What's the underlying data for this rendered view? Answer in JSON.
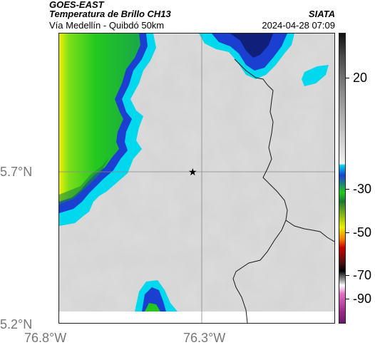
{
  "header": {
    "satellite": "GOES-EAST",
    "product": "Temperatura de Brillo CH13",
    "region": "Vía Medellín - Quibdó 50km",
    "agency": "SIATA",
    "datetime": "2024-04-28 07:09"
  },
  "axes": {
    "lat_labels": [
      "5.7°N",
      "5.2°N"
    ],
    "lon_labels": [
      "76.8°W",
      "76.3°W"
    ]
  },
  "colorbar": {
    "labels": [
      "20",
      "-30",
      "-50",
      "-70",
      "-90"
    ]
  },
  "marker": {
    "symbol": "★"
  },
  "colors": {
    "cold_cloud_gray": "#d6d6d6",
    "green": "#22c81e",
    "cyan": "#00d8ee",
    "blue": "#1b3fd0",
    "yellow": "#e8f000",
    "gridline": "#888888",
    "border_line": "#1a1a1a"
  }
}
